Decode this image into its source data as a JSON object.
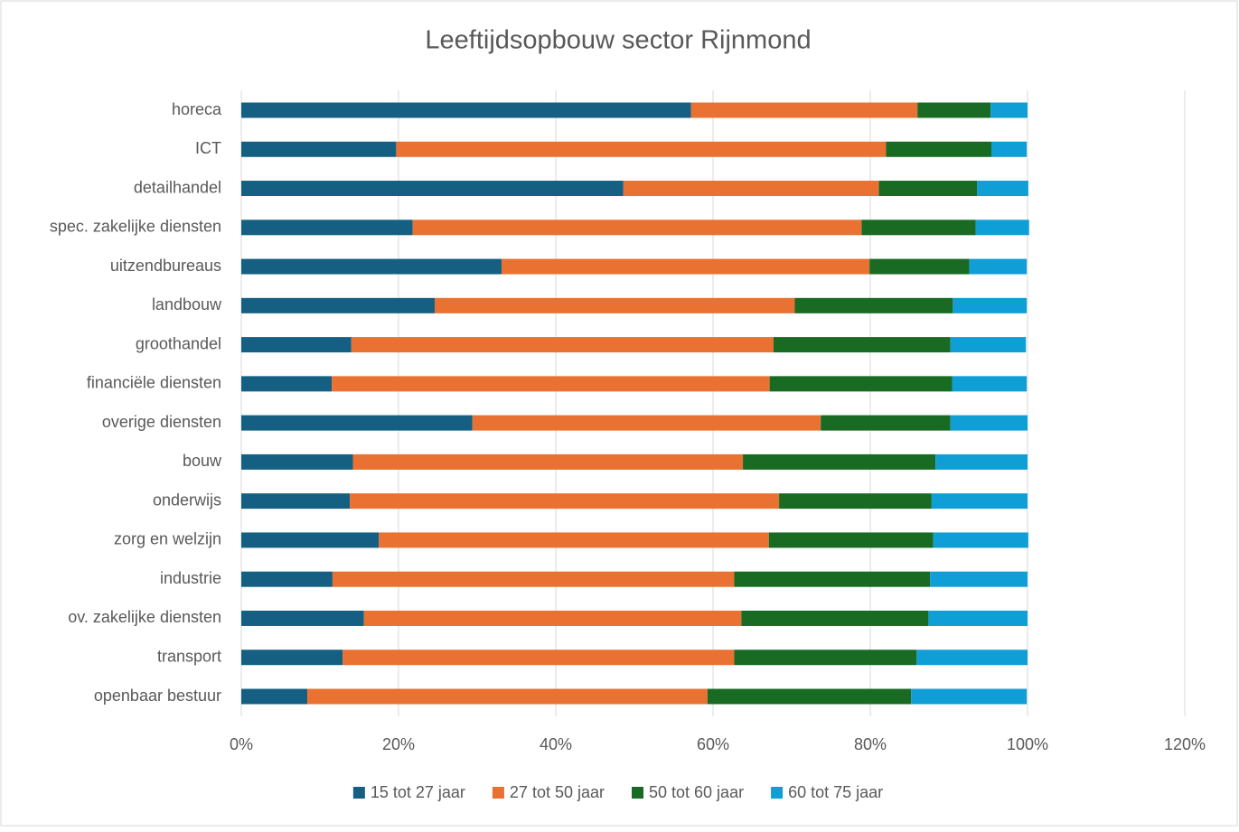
{
  "chart_data": {
    "type": "stacked_bar_horizontal",
    "title": "Leeftijdsopbouw sector Rijnmond",
    "categories": [
      "horeca",
      "ICT",
      "detailhandel",
      "spec. zakelijke diensten",
      "uitzendbureaus",
      "landbouw",
      "groothandel",
      "financiële diensten",
      "overige diensten",
      "bouw",
      "onderwijs",
      "zorg en welzijn",
      "industrie",
      "ov. zakelijke diensten",
      "transport",
      "openbaar bestuur"
    ],
    "series": [
      {
        "name": "15 tot 27 jaar",
        "color": "#156082",
        "values": [
          57.2,
          19.7,
          48.6,
          21.8,
          33.1,
          24.6,
          14.0,
          11.5,
          29.4,
          14.2,
          13.8,
          17.5,
          11.6,
          15.6,
          12.9,
          8.4
        ]
      },
      {
        "name": "27 tot 50 jaar",
        "color": "#e97132",
        "values": [
          28.8,
          62.3,
          32.5,
          57.1,
          46.8,
          45.8,
          53.7,
          55.7,
          44.3,
          49.6,
          54.6,
          49.6,
          51.1,
          48.0,
          49.8,
          50.9
        ]
      },
      {
        "name": "50 tot 60 jaar",
        "color": "#196b24",
        "values": [
          9.3,
          13.4,
          12.5,
          14.5,
          12.7,
          20.1,
          22.5,
          23.2,
          16.5,
          24.5,
          19.4,
          20.9,
          24.9,
          23.8,
          23.2,
          25.9
        ]
      },
      {
        "name": "60 tot 75 jaar",
        "color": "#0f9ed5",
        "values": [
          4.7,
          4.5,
          6.5,
          6.8,
          7.3,
          9.4,
          9.6,
          9.5,
          9.8,
          11.7,
          12.2,
          12.1,
          12.4,
          12.6,
          14.1,
          14.7
        ]
      }
    ],
    "xlim": [
      0,
      120
    ],
    "xticks": [
      {
        "value": 0,
        "label": "0%"
      },
      {
        "value": 20,
        "label": "20%"
      },
      {
        "value": 40,
        "label": "40%"
      },
      {
        "value": 60,
        "label": "60%"
      },
      {
        "value": 80,
        "label": "80%"
      },
      {
        "value": 100,
        "label": "100%"
      },
      {
        "value": 120,
        "label": "120%"
      }
    ],
    "grid": true,
    "legend": "bottom"
  }
}
